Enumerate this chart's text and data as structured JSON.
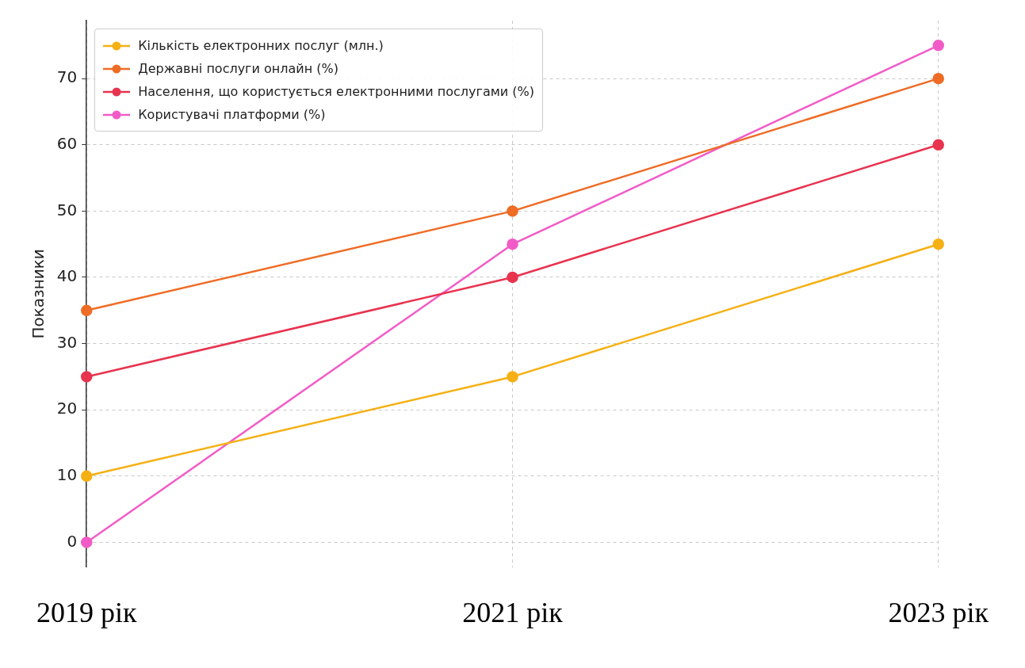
{
  "chart_data": {
    "type": "line",
    "ylabel": "Показники",
    "categories": [
      "2019 рік",
      "2021 рік",
      "2023 рік"
    ],
    "series": [
      {
        "name": "Кількість електронних послуг (млн.)",
        "color": "#f5b014",
        "values": [
          10,
          25,
          45
        ]
      },
      {
        "name": "Державні послуги онлайн (%)",
        "color": "#ee6c25",
        "values": [
          35,
          50,
          70
        ]
      },
      {
        "name": "Населення, що користується електронними послугами (%)",
        "color": "#e8334f",
        "values": [
          25,
          40,
          60
        ]
      },
      {
        "name": "Користувачі платформи (%)",
        "color": "#f25bc7",
        "values": [
          0,
          45,
          75
        ]
      }
    ],
    "ylim": [
      -3.75,
      78.75
    ],
    "yticks": [
      0,
      10,
      20,
      30,
      40,
      50,
      60,
      70
    ],
    "grid": true,
    "legend": "top left",
    "marker": "circle"
  }
}
